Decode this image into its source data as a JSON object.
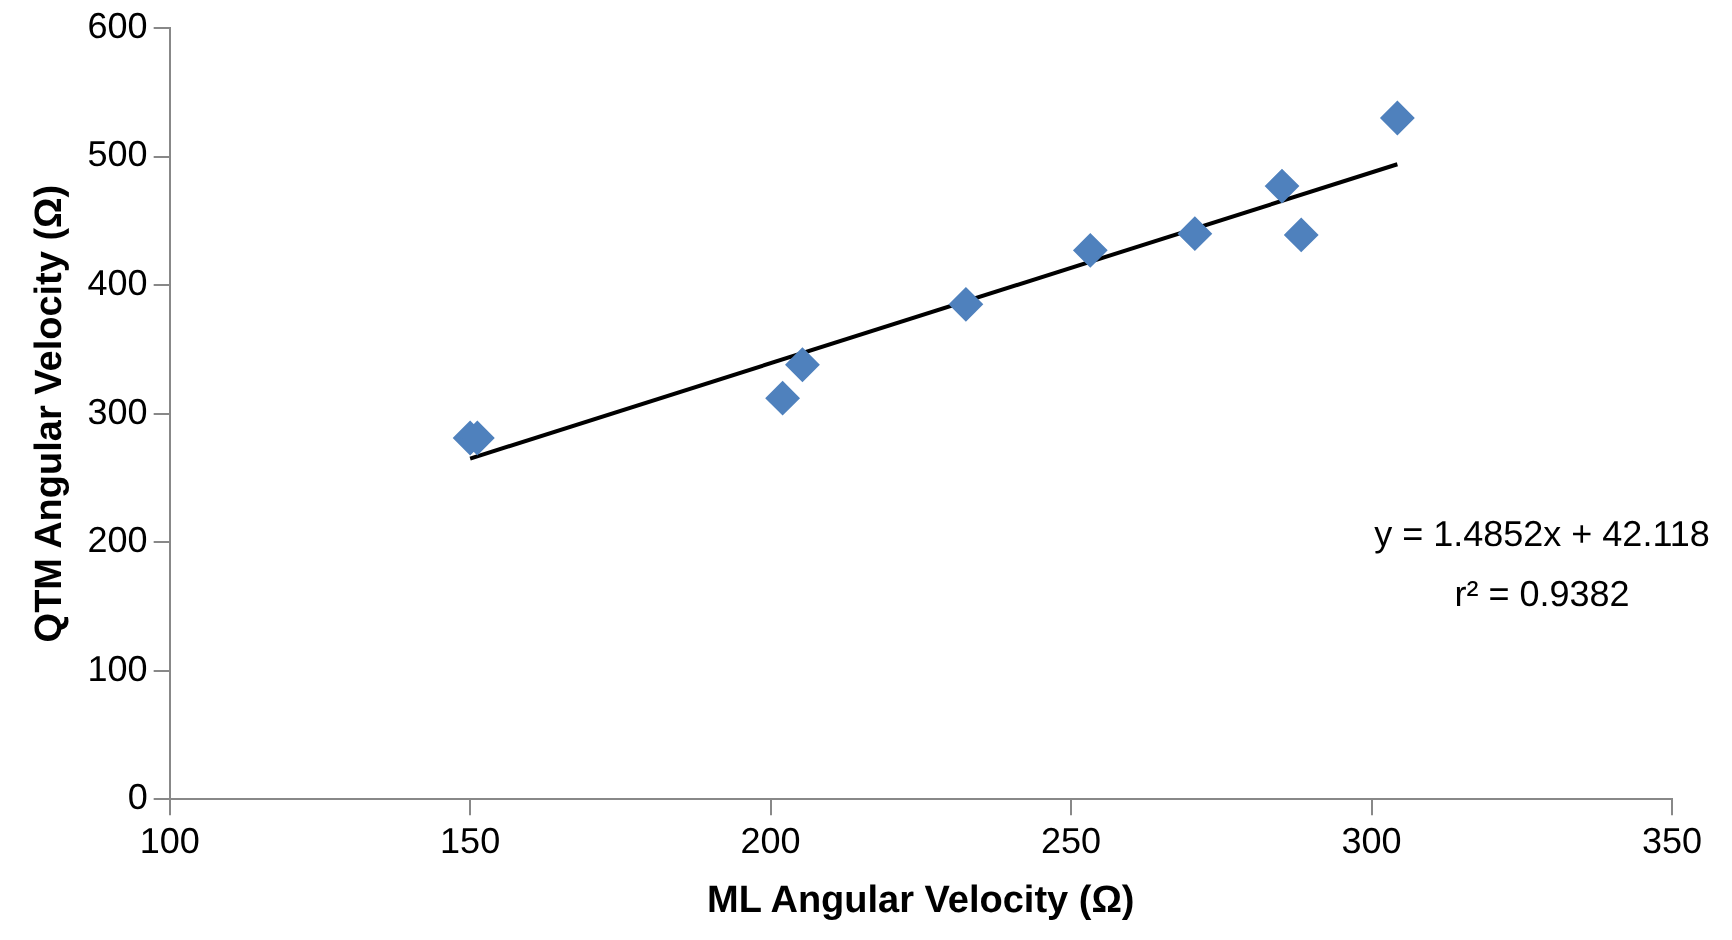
{
  "chart_data": {
    "type": "scatter",
    "xlabel": "ML Angular Velocity (Ω)",
    "ylabel": "QTM Angular Velocity (Ω)",
    "xlim": [
      100,
      350
    ],
    "xticks": [
      100,
      150,
      200,
      250,
      300,
      350
    ],
    "ylim": [
      0,
      600
    ],
    "yticks": [
      0,
      100,
      200,
      300,
      400,
      500,
      600
    ],
    "grid": false,
    "legend": false,
    "marker": "diamond",
    "series": [
      {
        "color": "#4f81bd",
        "x": [
          150,
          151.2,
          202,
          205.3,
          232.5,
          253.2,
          270.6,
          285.1,
          288.3,
          304.3
        ],
        "values": [
          281,
          281,
          312,
          338,
          385,
          427,
          440,
          477,
          439,
          530
        ]
      },
      {
        "type": "line",
        "color": "#000000",
        "marker": "none",
        "x": [
          150,
          304.3
        ],
        "values": [
          265,
          494
        ]
      }
    ],
    "annotations": [
      "y = 1.4852x + 42.118",
      "r² = 0.9382"
    ]
  }
}
